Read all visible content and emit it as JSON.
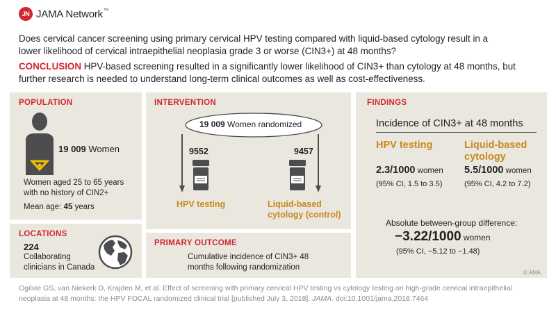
{
  "brand": {
    "badge": "JN",
    "name": "JAMA Network",
    "trademark": "™",
    "accent_color": "#d22630",
    "highlight_color": "#c8891f",
    "panel_color": "#eae7df"
  },
  "question": "Does cervical cancer screening using primary cervical HPV testing compared with liquid-based cytology result in a lower likelihood of cervical intraepithelial neoplasia grade 3 or worse (CIN3+) at 48 months?",
  "conclusion": {
    "label": "CONCLUSION",
    "text": " HPV-based screening resulted in a significantly lower likelihood of CIN3+ than cytology at 48 months, but further research is needed to understand long-term clinical outcomes as well as cost-effectiveness."
  },
  "population": {
    "title": "POPULATION",
    "count": "19 009",
    "count_label": "Women",
    "description": "Women aged 25 to 65 years with no history of CIN2+",
    "mean_age_label": "Mean age:",
    "mean_age_value": "45",
    "mean_age_unit": "years"
  },
  "locations": {
    "title": "LOCATIONS",
    "count": "224",
    "description": "Collaborating clinicians in Canada"
  },
  "intervention": {
    "title": "INTERVENTION",
    "randomized_count": "19 009",
    "randomized_label": "Women randomized",
    "arms": [
      {
        "n": "9552",
        "label": "HPV testing"
      },
      {
        "n": "9457",
        "label": "Liquid-based cytology (control)"
      }
    ]
  },
  "primary_outcome": {
    "title": "PRIMARY OUTCOME",
    "text": "Cumulative incidence of CIN3+ 48 months following randomization"
  },
  "findings": {
    "title": "FINDINGS",
    "subtitle": "Incidence of CIN3+ at 48 months",
    "groups": [
      {
        "label": "HPV testing",
        "rate": "2.3/1000",
        "unit": "women",
        "ci": "(95% CI, 1.5 to 3.5)"
      },
      {
        "label": "Liquid-based cytology",
        "rate": "5.5/1000",
        "unit": "women",
        "ci": "(95% CI, 4.2 to 7.2)"
      }
    ],
    "difference_label": "Absolute between-group difference:",
    "difference_value": "−3.22/1000",
    "difference_unit": "women",
    "difference_ci": "(95% CI, −5.12 to −1.48)"
  },
  "copyright": "© AMA",
  "citation": {
    "pre": "Ogilvie GS, van Niekerk D, Krajden M, et al. Effect of screening with primary cervical HPV testing vs cytology testing on high-grade cervical intraepithelial neoplasia at 48 months: the HPV FOCAL randomized clinical trial [published July 3, 2018]. ",
    "journal": "JAMA",
    "post": ". doi:10.1001/jama.2018.7464"
  }
}
